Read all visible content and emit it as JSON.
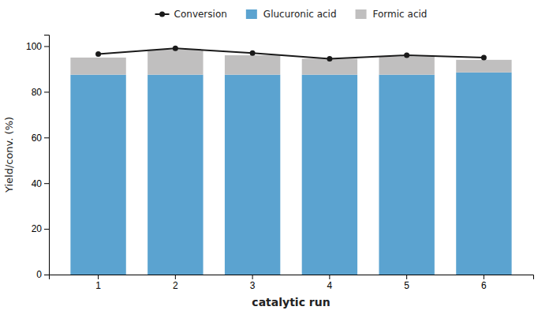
{
  "chart_data": {
    "type": "bar",
    "stacked": true,
    "categories": [
      1,
      2,
      3,
      4,
      5,
      6
    ],
    "xlabel": "catalytic run",
    "ylabel": "Yield/conv. (%)",
    "ylim": [
      0,
      105
    ],
    "yticks": [
      0,
      20,
      40,
      60,
      80,
      100
    ],
    "grid": false,
    "legend": "top",
    "series": [
      {
        "name": "Conversion",
        "type": "line",
        "color": "#1a1a1a",
        "marker": "circle",
        "values": [
          96.5,
          99.0,
          97.0,
          94.5,
          96.0,
          95.0
        ]
      },
      {
        "name": "Glucuronic acid",
        "type": "bar",
        "color": "#5ba3d0",
        "values": [
          87.5,
          87.5,
          87.5,
          87.5,
          87.5,
          88.5
        ]
      },
      {
        "name": "Formic acid",
        "type": "bar",
        "color": "#c0bfbf",
        "values": [
          7.5,
          11.0,
          8.5,
          7.0,
          8.0,
          5.5
        ]
      }
    ]
  }
}
